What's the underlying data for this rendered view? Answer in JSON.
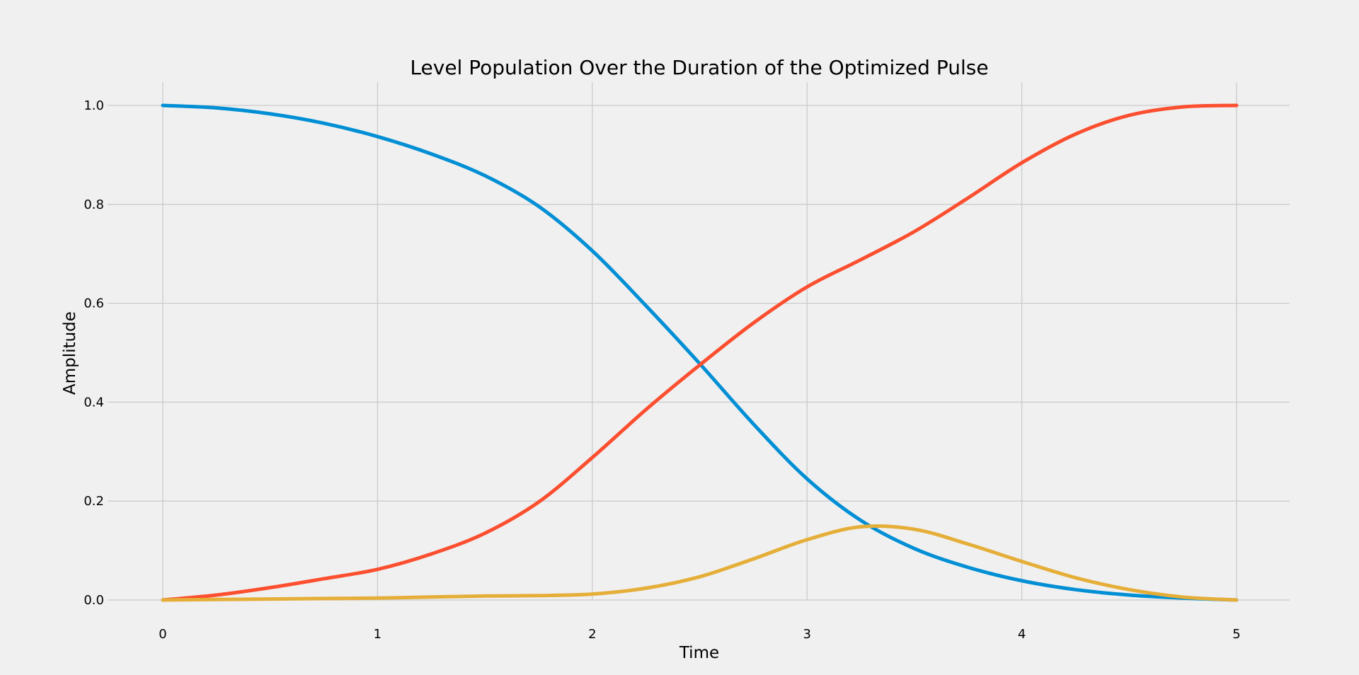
{
  "chart_data": {
    "type": "line",
    "title": "Level Population Over the Duration of the Optimized Pulse",
    "xlabel": "Time",
    "ylabel": "Amplitude",
    "xlim": [
      -0.25,
      5.25
    ],
    "ylim": [
      -0.05,
      1.05
    ],
    "xticks": [
      0,
      1,
      2,
      3,
      4,
      5
    ],
    "xtick_labels": [
      "0",
      "1",
      "2",
      "3",
      "4",
      "5"
    ],
    "yticks": [
      0.0,
      0.2,
      0.4,
      0.6,
      0.8,
      1.0
    ],
    "ytick_labels": [
      "0.0",
      "0.2",
      "0.4",
      "0.6",
      "0.8",
      "1.0"
    ],
    "grid": true,
    "legend": "none",
    "x": [
      0,
      0.25,
      0.5,
      0.75,
      1.0,
      1.25,
      1.5,
      1.75,
      2.0,
      2.25,
      2.5,
      2.75,
      3.0,
      3.25,
      3.5,
      3.75,
      4.0,
      4.25,
      4.5,
      4.75,
      5.0
    ],
    "series": [
      {
        "color": "#008fd5",
        "values": [
          1.0,
          0.995,
          0.983,
          0.964,
          0.937,
          0.902,
          0.858,
          0.796,
          0.706,
          0.595,
          0.478,
          0.356,
          0.245,
          0.161,
          0.104,
          0.066,
          0.039,
          0.021,
          0.01,
          0.004,
          0.0
        ]
      },
      {
        "color": "#fc4f30",
        "values": [
          0.0,
          0.01,
          0.025,
          0.043,
          0.062,
          0.093,
          0.135,
          0.198,
          0.288,
          0.385,
          0.475,
          0.56,
          0.633,
          0.688,
          0.745,
          0.813,
          0.884,
          0.942,
          0.98,
          0.997,
          1.0
        ]
      },
      {
        "color": "#e5ae38",
        "values": [
          0.0,
          0.001,
          0.002,
          0.003,
          0.004,
          0.006,
          0.008,
          0.009,
          0.012,
          0.024,
          0.047,
          0.083,
          0.122,
          0.148,
          0.143,
          0.113,
          0.078,
          0.045,
          0.021,
          0.006,
          0.0
        ]
      }
    ]
  }
}
